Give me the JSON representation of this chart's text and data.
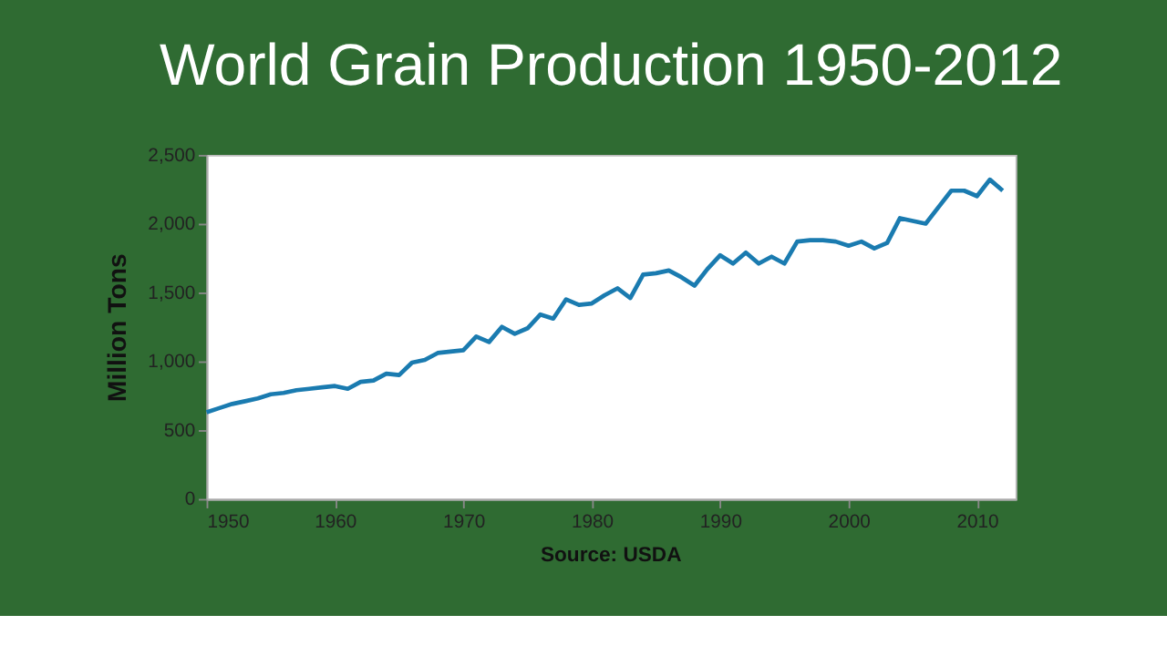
{
  "chart_data": {
    "type": "line",
    "title": "World Grain Production 1950-2012",
    "ylabel": "Million Tons",
    "annotations": [
      "Source: USDA"
    ],
    "x": [
      1950,
      1951,
      1952,
      1953,
      1954,
      1955,
      1956,
      1957,
      1958,
      1959,
      1960,
      1961,
      1962,
      1963,
      1964,
      1965,
      1966,
      1967,
      1968,
      1969,
      1970,
      1971,
      1972,
      1973,
      1974,
      1975,
      1976,
      1977,
      1978,
      1979,
      1980,
      1981,
      1982,
      1983,
      1984,
      1985,
      1986,
      1987,
      1988,
      1989,
      1990,
      1991,
      1992,
      1993,
      1994,
      1995,
      1996,
      1997,
      1998,
      1999,
      2000,
      2001,
      2002,
      2003,
      2004,
      2005,
      2006,
      2007,
      2008,
      2009,
      2010,
      2011,
      2012
    ],
    "series": [
      {
        "color": "#1a7bb0",
        "values": [
          630,
          660,
          690,
          710,
          730,
          760,
          770,
          790,
          800,
          810,
          820,
          800,
          850,
          860,
          910,
          900,
          990,
          1010,
          1060,
          1070,
          1080,
          1180,
          1140,
          1250,
          1200,
          1240,
          1340,
          1310,
          1450,
          1410,
          1420,
          1480,
          1530,
          1460,
          1630,
          1640,
          1660,
          1610,
          1550,
          1670,
          1770,
          1710,
          1790,
          1710,
          1760,
          1710,
          1870,
          1880,
          1880,
          1870,
          1840,
          1870,
          1820,
          1860,
          2040,
          2020,
          2000,
          2120,
          2240,
          2240,
          2200,
          2320,
          2240
        ]
      }
    ],
    "xlim": [
      1950,
      2013
    ],
    "xticks": [
      1950,
      1960,
      1970,
      1980,
      1990,
      2000,
      2010
    ],
    "ylim": [
      0,
      2500
    ],
    "yticks": [
      0,
      {
        "value": 500,
        "label": "500"
      },
      {
        "value": 1000,
        "label": "1,000"
      },
      {
        "value": 1500,
        "label": "1,500"
      },
      {
        "value": 2000,
        "label": "2,000"
      },
      {
        "value": 2500,
        "label": "2,500"
      }
    ],
    "grid": false
  }
}
